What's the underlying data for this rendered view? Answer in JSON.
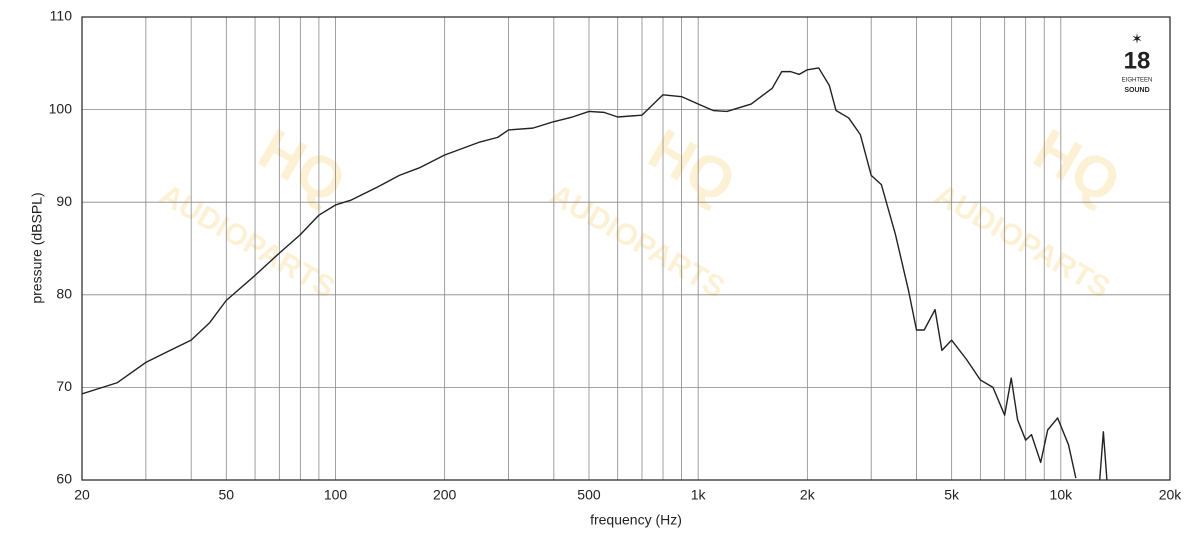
{
  "chart_data": {
    "type": "line",
    "xscale": "log",
    "x_label": "frequency (Hz)",
    "y_label": "pressure (dBSPL)",
    "logo": {
      "number": "18",
      "top": "EIGHTEEN",
      "bottom": "SOUND",
      "color": "#c8102e"
    },
    "watermark": {
      "top": "HQ",
      "bottom": "AUDIOPARTS"
    },
    "xlim": [
      20,
      20000
    ],
    "ylim": [
      60,
      110
    ],
    "xticks": [
      20,
      50,
      100,
      200,
      500,
      {
        "value": 1000,
        "label": "1k"
      },
      {
        "value": 2000,
        "label": "2k"
      },
      {
        "value": 5000,
        "label": "5k"
      },
      {
        "value": 10000,
        "label": "10k"
      },
      {
        "value": 20000,
        "label": "20k"
      }
    ],
    "x_minor_grid": [
      30,
      40,
      60,
      70,
      80,
      90,
      300,
      400,
      600,
      700,
      800,
      900,
      3000,
      4000,
      6000,
      7000,
      8000,
      9000
    ],
    "yticks": [
      60,
      70,
      80,
      90,
      100,
      110
    ],
    "grid": true,
    "x": [
      20,
      25,
      30,
      35,
      40,
      45,
      50,
      60,
      70,
      80,
      90,
      100,
      110,
      130,
      150,
      170,
      200,
      250,
      280,
      300,
      350,
      400,
      450,
      500,
      550,
      600,
      700,
      800,
      900,
      1000,
      1100,
      1200,
      1400,
      1600,
      1700,
      1800,
      1900,
      2000,
      2150,
      2300,
      2400,
      2600,
      2800,
      3000,
      3200,
      3500,
      3800,
      4000,
      4200,
      4500,
      4700,
      5000,
      5500,
      6000,
      6500,
      7000,
      7300,
      7600,
      8000,
      8300,
      8800,
      9200,
      9800,
      10500,
      11000,
      12000,
      12800,
      13100,
      13400,
      14000
    ],
    "series": [
      {
        "name": "SPL",
        "color": "#222222",
        "values": [
          69.3,
          70.5,
          72.7,
          74,
          75.1,
          77,
          79.4,
          82.1,
          84.5,
          86.5,
          88.6,
          89.7,
          90.2,
          91.6,
          92.9,
          93.7,
          95.1,
          96.5,
          97,
          97.8,
          98,
          98.7,
          99.2,
          99.8,
          99.7,
          99.2,
          99.4,
          101.6,
          101.4,
          100.6,
          99.9,
          99.8,
          100.6,
          102.3,
          104.1,
          104.1,
          103.8,
          104.3,
          104.5,
          102.6,
          99.9,
          99.1,
          97.3,
          92.9,
          91.9,
          86.5,
          80.5,
          76.2,
          76.2,
          78.4,
          74,
          75.1,
          73,
          70.8,
          70,
          67,
          71,
          66.5,
          64.3,
          64.9,
          61.9,
          65.4,
          66.7,
          63.8,
          60.2,
          null,
          60,
          65.2,
          60,
          null
        ]
      }
    ]
  }
}
